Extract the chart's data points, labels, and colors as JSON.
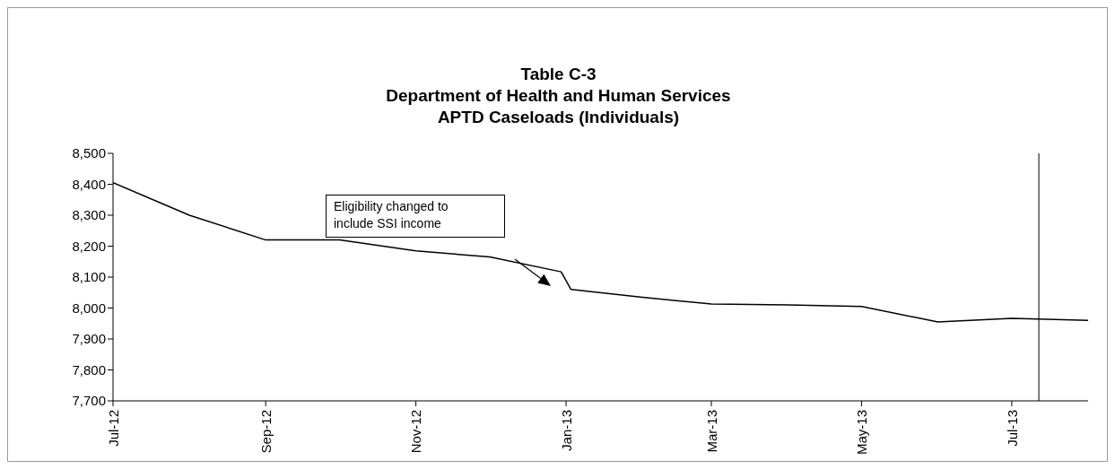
{
  "chart_data": {
    "type": "line",
    "title": "Table C-3\nDepartment of Health and Human Services\nAPTD Caseloads (Individuals)",
    "x": [
      "2012-07-01",
      "2012-08-01",
      "2012-09-01",
      "2012-10-01",
      "2012-11-01",
      "2012-12-01",
      "2012-12-30",
      "2013-01-03",
      "2013-02-01",
      "2013-03-01",
      "2013-04-01",
      "2013-05-01",
      "2013-06-01",
      "2013-07-01",
      "2013-08-01"
    ],
    "series": [
      {
        "color": "#000000",
        "values": [
          8405,
          8300,
          8220,
          8220,
          8185,
          8165,
          8117,
          8060,
          8035,
          8013,
          8010,
          8005,
          7955,
          7967,
          7960
        ]
      }
    ],
    "xlim": [
      "2012-07-01",
      "2013-08-01"
    ],
    "xticks": [
      {
        "value": "2012-07-01",
        "label": "Jul-12"
      },
      {
        "value": "2012-09-01",
        "label": "Sep-12"
      },
      {
        "value": "2012-11-01",
        "label": "Nov-12"
      },
      {
        "value": "2013-01-01",
        "label": "Jan-13"
      },
      {
        "value": "2013-03-01",
        "label": "Mar-13"
      },
      {
        "value": "2013-05-01",
        "label": "May-13"
      },
      {
        "value": "2013-07-01",
        "label": "Jul-13"
      }
    ],
    "ylim": [
      7700,
      8500
    ],
    "yticks": [
      {
        "value": 7700,
        "label": "7,700"
      },
      {
        "value": 7800,
        "label": "7,800"
      },
      {
        "value": 7900,
        "label": "7,900"
      },
      {
        "value": 8000,
        "label": "8,000"
      },
      {
        "value": 8100,
        "label": "8,100"
      },
      {
        "value": 8200,
        "label": "8,200"
      },
      {
        "value": 8300,
        "label": "8,300"
      },
      {
        "value": 8400,
        "label": "8,400"
      },
      {
        "value": 8500,
        "label": "8,500"
      }
    ],
    "ref_lines": [
      {
        "axis": "x",
        "value": "2013-07-12",
        "color": "#000000"
      }
    ],
    "annotations": [
      "Eligibility changed to\ninclude SSI income"
    ],
    "grid": false,
    "marker": "none",
    "line_style": "solid"
  }
}
